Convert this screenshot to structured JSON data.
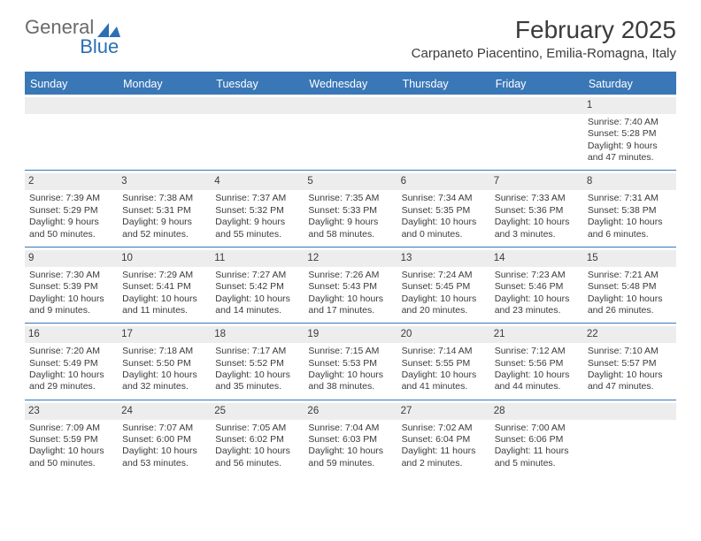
{
  "logo": {
    "general": "General",
    "blue": "Blue"
  },
  "title": "February 2025",
  "location": "Carpaneto Piacentino, Emilia-Romagna, Italy",
  "colors": {
    "header_bg": "#3a77b7",
    "header_text": "#ffffff",
    "daynum_bg": "#ededed",
    "text": "#3b3b3b",
    "logo_gray": "#6a6a6a",
    "logo_blue": "#2c6fb5"
  },
  "days_of_week": [
    "Sunday",
    "Monday",
    "Tuesday",
    "Wednesday",
    "Thursday",
    "Friday",
    "Saturday"
  ],
  "weeks": [
    [
      {
        "num": "",
        "sunrise": "",
        "sunset": "",
        "daylight1": "",
        "daylight2": ""
      },
      {
        "num": "",
        "sunrise": "",
        "sunset": "",
        "daylight1": "",
        "daylight2": ""
      },
      {
        "num": "",
        "sunrise": "",
        "sunset": "",
        "daylight1": "",
        "daylight2": ""
      },
      {
        "num": "",
        "sunrise": "",
        "sunset": "",
        "daylight1": "",
        "daylight2": ""
      },
      {
        "num": "",
        "sunrise": "",
        "sunset": "",
        "daylight1": "",
        "daylight2": ""
      },
      {
        "num": "",
        "sunrise": "",
        "sunset": "",
        "daylight1": "",
        "daylight2": ""
      },
      {
        "num": "1",
        "sunrise": "Sunrise: 7:40 AM",
        "sunset": "Sunset: 5:28 PM",
        "daylight1": "Daylight: 9 hours",
        "daylight2": "and 47 minutes."
      }
    ],
    [
      {
        "num": "2",
        "sunrise": "Sunrise: 7:39 AM",
        "sunset": "Sunset: 5:29 PM",
        "daylight1": "Daylight: 9 hours",
        "daylight2": "and 50 minutes."
      },
      {
        "num": "3",
        "sunrise": "Sunrise: 7:38 AM",
        "sunset": "Sunset: 5:31 PM",
        "daylight1": "Daylight: 9 hours",
        "daylight2": "and 52 minutes."
      },
      {
        "num": "4",
        "sunrise": "Sunrise: 7:37 AM",
        "sunset": "Sunset: 5:32 PM",
        "daylight1": "Daylight: 9 hours",
        "daylight2": "and 55 minutes."
      },
      {
        "num": "5",
        "sunrise": "Sunrise: 7:35 AM",
        "sunset": "Sunset: 5:33 PM",
        "daylight1": "Daylight: 9 hours",
        "daylight2": "and 58 minutes."
      },
      {
        "num": "6",
        "sunrise": "Sunrise: 7:34 AM",
        "sunset": "Sunset: 5:35 PM",
        "daylight1": "Daylight: 10 hours",
        "daylight2": "and 0 minutes."
      },
      {
        "num": "7",
        "sunrise": "Sunrise: 7:33 AM",
        "sunset": "Sunset: 5:36 PM",
        "daylight1": "Daylight: 10 hours",
        "daylight2": "and 3 minutes."
      },
      {
        "num": "8",
        "sunrise": "Sunrise: 7:31 AM",
        "sunset": "Sunset: 5:38 PM",
        "daylight1": "Daylight: 10 hours",
        "daylight2": "and 6 minutes."
      }
    ],
    [
      {
        "num": "9",
        "sunrise": "Sunrise: 7:30 AM",
        "sunset": "Sunset: 5:39 PM",
        "daylight1": "Daylight: 10 hours",
        "daylight2": "and 9 minutes."
      },
      {
        "num": "10",
        "sunrise": "Sunrise: 7:29 AM",
        "sunset": "Sunset: 5:41 PM",
        "daylight1": "Daylight: 10 hours",
        "daylight2": "and 11 minutes."
      },
      {
        "num": "11",
        "sunrise": "Sunrise: 7:27 AM",
        "sunset": "Sunset: 5:42 PM",
        "daylight1": "Daylight: 10 hours",
        "daylight2": "and 14 minutes."
      },
      {
        "num": "12",
        "sunrise": "Sunrise: 7:26 AM",
        "sunset": "Sunset: 5:43 PM",
        "daylight1": "Daylight: 10 hours",
        "daylight2": "and 17 minutes."
      },
      {
        "num": "13",
        "sunrise": "Sunrise: 7:24 AM",
        "sunset": "Sunset: 5:45 PM",
        "daylight1": "Daylight: 10 hours",
        "daylight2": "and 20 minutes."
      },
      {
        "num": "14",
        "sunrise": "Sunrise: 7:23 AM",
        "sunset": "Sunset: 5:46 PM",
        "daylight1": "Daylight: 10 hours",
        "daylight2": "and 23 minutes."
      },
      {
        "num": "15",
        "sunrise": "Sunrise: 7:21 AM",
        "sunset": "Sunset: 5:48 PM",
        "daylight1": "Daylight: 10 hours",
        "daylight2": "and 26 minutes."
      }
    ],
    [
      {
        "num": "16",
        "sunrise": "Sunrise: 7:20 AM",
        "sunset": "Sunset: 5:49 PM",
        "daylight1": "Daylight: 10 hours",
        "daylight2": "and 29 minutes."
      },
      {
        "num": "17",
        "sunrise": "Sunrise: 7:18 AM",
        "sunset": "Sunset: 5:50 PM",
        "daylight1": "Daylight: 10 hours",
        "daylight2": "and 32 minutes."
      },
      {
        "num": "18",
        "sunrise": "Sunrise: 7:17 AM",
        "sunset": "Sunset: 5:52 PM",
        "daylight1": "Daylight: 10 hours",
        "daylight2": "and 35 minutes."
      },
      {
        "num": "19",
        "sunrise": "Sunrise: 7:15 AM",
        "sunset": "Sunset: 5:53 PM",
        "daylight1": "Daylight: 10 hours",
        "daylight2": "and 38 minutes."
      },
      {
        "num": "20",
        "sunrise": "Sunrise: 7:14 AM",
        "sunset": "Sunset: 5:55 PM",
        "daylight1": "Daylight: 10 hours",
        "daylight2": "and 41 minutes."
      },
      {
        "num": "21",
        "sunrise": "Sunrise: 7:12 AM",
        "sunset": "Sunset: 5:56 PM",
        "daylight1": "Daylight: 10 hours",
        "daylight2": "and 44 minutes."
      },
      {
        "num": "22",
        "sunrise": "Sunrise: 7:10 AM",
        "sunset": "Sunset: 5:57 PM",
        "daylight1": "Daylight: 10 hours",
        "daylight2": "and 47 minutes."
      }
    ],
    [
      {
        "num": "23",
        "sunrise": "Sunrise: 7:09 AM",
        "sunset": "Sunset: 5:59 PM",
        "daylight1": "Daylight: 10 hours",
        "daylight2": "and 50 minutes."
      },
      {
        "num": "24",
        "sunrise": "Sunrise: 7:07 AM",
        "sunset": "Sunset: 6:00 PM",
        "daylight1": "Daylight: 10 hours",
        "daylight2": "and 53 minutes."
      },
      {
        "num": "25",
        "sunrise": "Sunrise: 7:05 AM",
        "sunset": "Sunset: 6:02 PM",
        "daylight1": "Daylight: 10 hours",
        "daylight2": "and 56 minutes."
      },
      {
        "num": "26",
        "sunrise": "Sunrise: 7:04 AM",
        "sunset": "Sunset: 6:03 PM",
        "daylight1": "Daylight: 10 hours",
        "daylight2": "and 59 minutes."
      },
      {
        "num": "27",
        "sunrise": "Sunrise: 7:02 AM",
        "sunset": "Sunset: 6:04 PM",
        "daylight1": "Daylight: 11 hours",
        "daylight2": "and 2 minutes."
      },
      {
        "num": "28",
        "sunrise": "Sunrise: 7:00 AM",
        "sunset": "Sunset: 6:06 PM",
        "daylight1": "Daylight: 11 hours",
        "daylight2": "and 5 minutes."
      },
      {
        "num": "",
        "sunrise": "",
        "sunset": "",
        "daylight1": "",
        "daylight2": ""
      }
    ]
  ]
}
